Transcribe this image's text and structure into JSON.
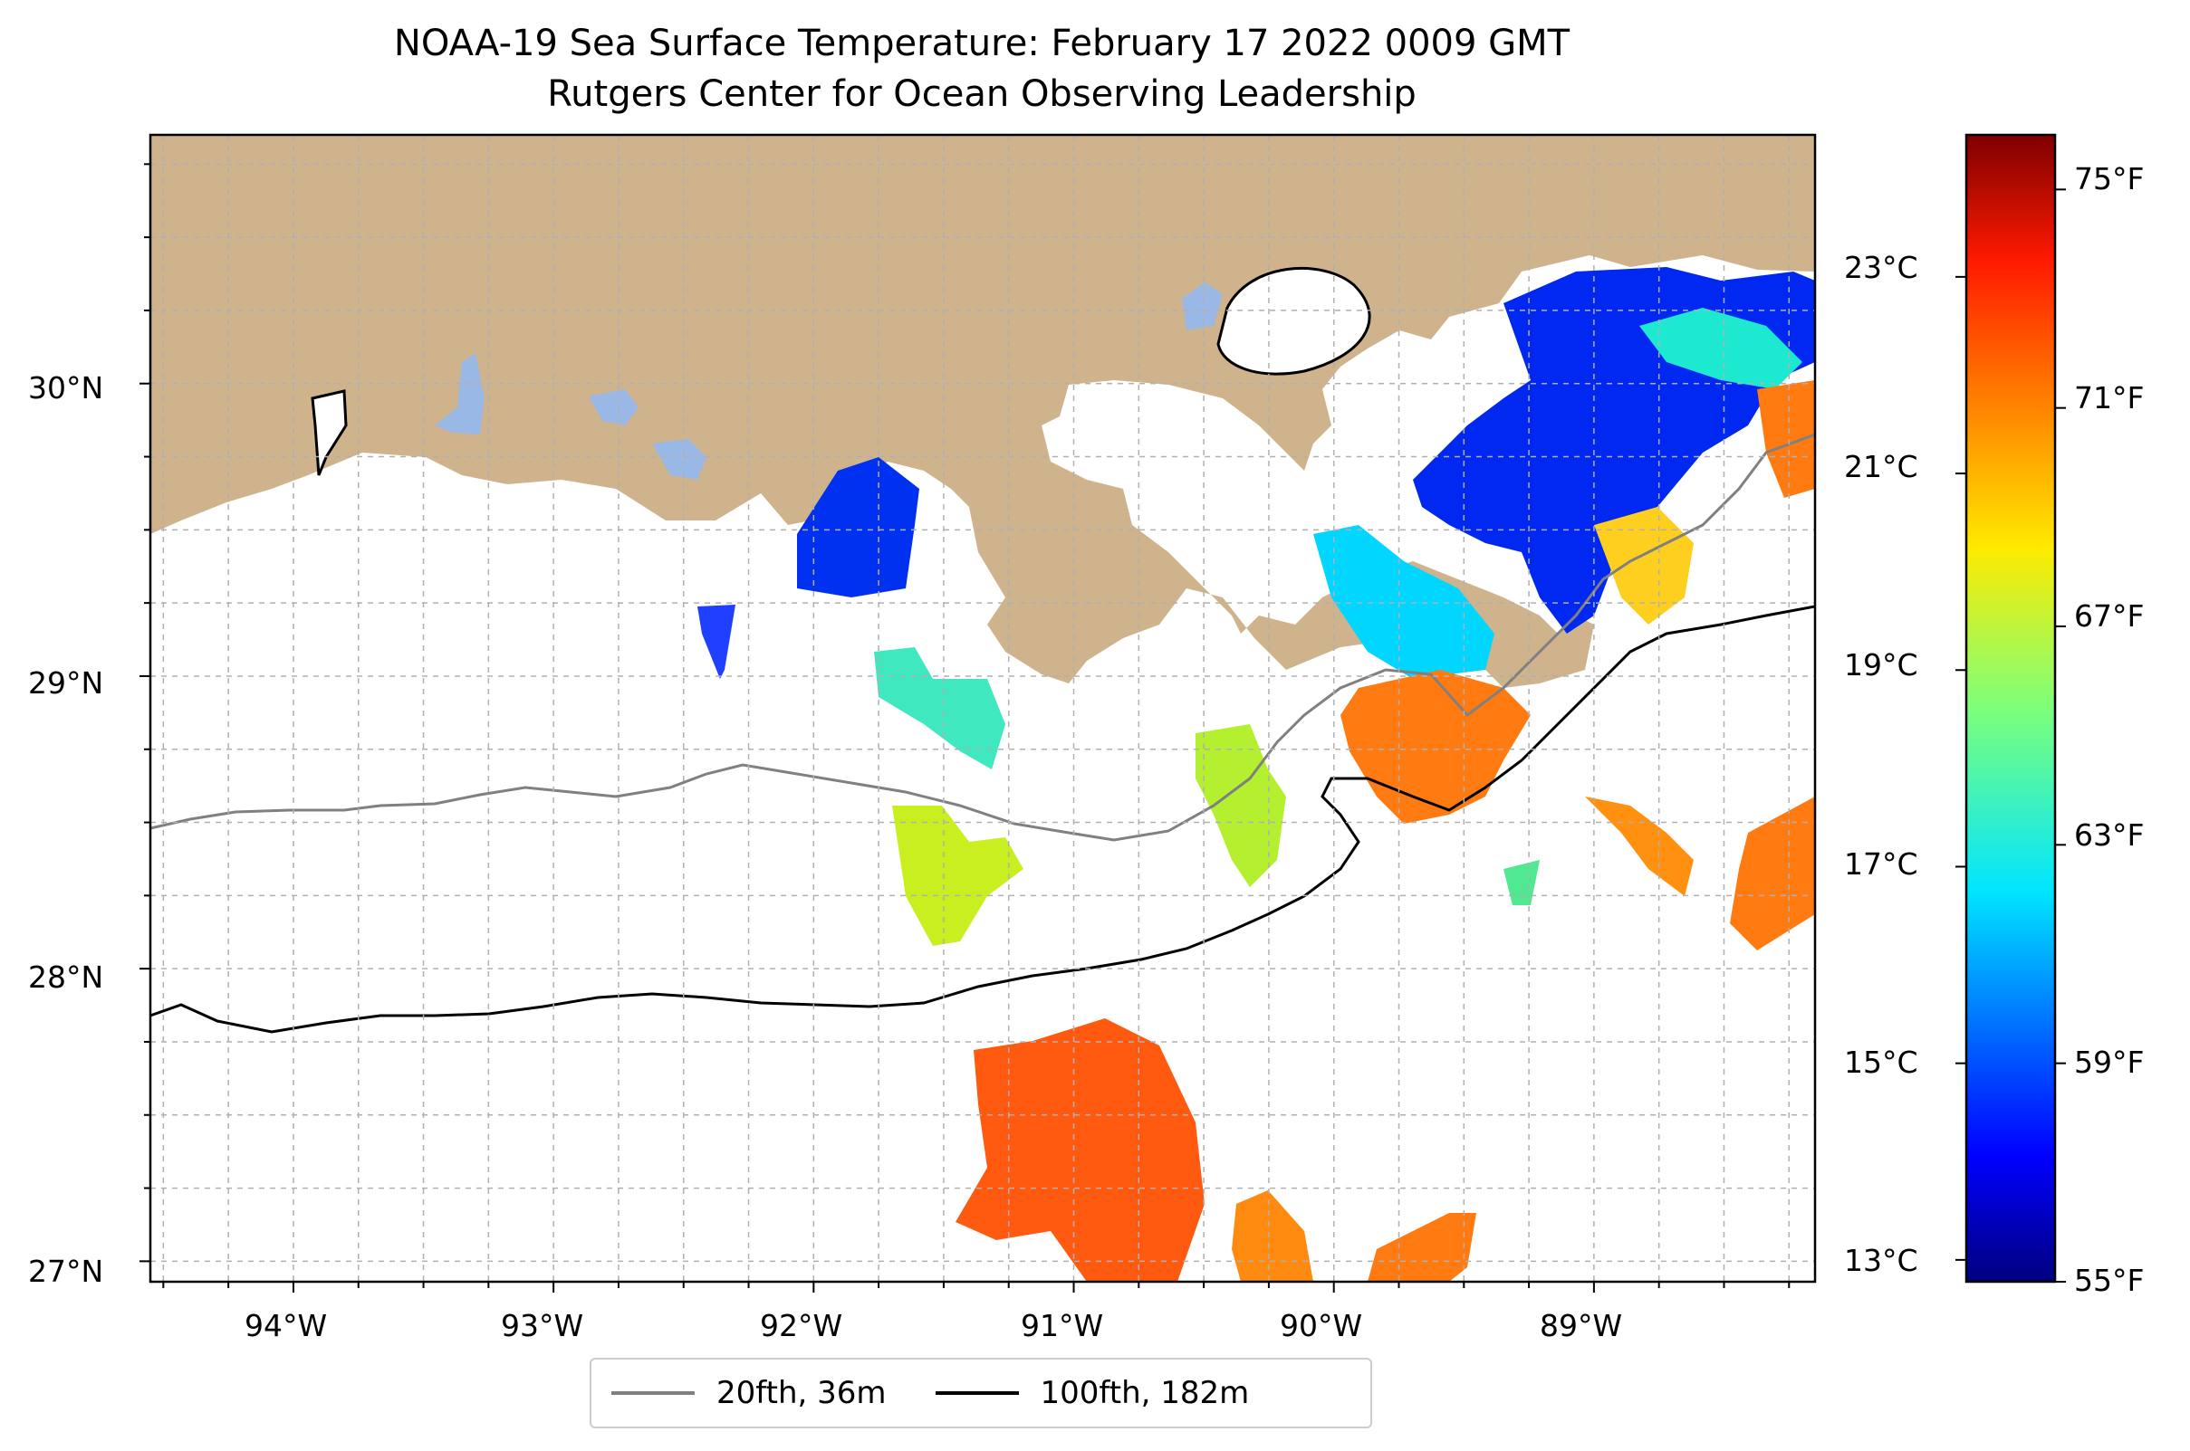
{
  "title": "NOAA-19 Sea Surface Temperature: February 17 2022 0009 GMT",
  "subtitle": "Rutgers Center for Ocean Observing Leadership",
  "map": {
    "lon_range": [
      -94.55,
      -88.15
    ],
    "lat_range": [
      26.93,
      30.85
    ],
    "lon_ticks": [
      "94°W",
      "93°W",
      "92°W",
      "91°W",
      "90°W",
      "89°W"
    ],
    "lat_ticks": [
      "30°N",
      "29°N",
      "28°N",
      "27°N"
    ],
    "land_color": "#cfb38c",
    "lake_color": "#9ab8e6",
    "gridlines": true
  },
  "colorbar": {
    "celsius_ticks": [
      "23°C",
      "21°C",
      "19°C",
      "17°C",
      "15°C",
      "13°C"
    ],
    "fahrenheit_ticks": [
      "75°F",
      "71°F",
      "67°F",
      "63°F",
      "59°F",
      "55°F"
    ],
    "range_f": [
      55,
      76
    ],
    "colormap": "jet"
  },
  "legend": [
    {
      "label": "20fth, 36m",
      "color": "#808080"
    },
    {
      "label": "100fth, 182m",
      "color": "#000000"
    }
  ]
}
